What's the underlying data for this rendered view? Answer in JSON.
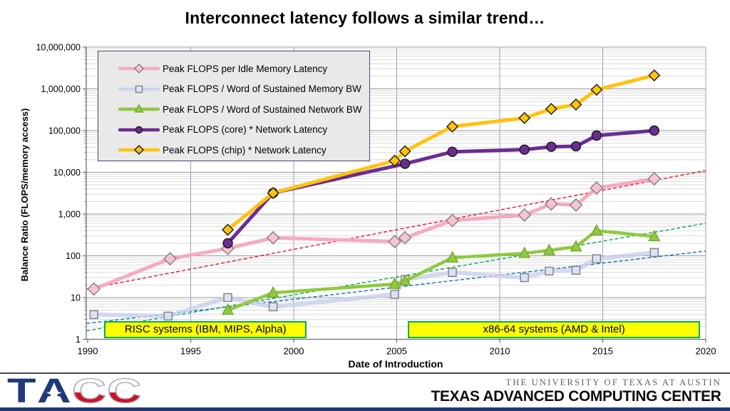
{
  "slide": {
    "title": "Interconnect latency follows a similar trend…"
  },
  "footer": {
    "logo_letters": [
      "T",
      "A",
      "C",
      "C"
    ],
    "star_icon": "★",
    "university": "THE UNIVERSITY OF TEXAS AT AUSTIN",
    "center": "TEXAS ADVANCED COMPUTING CENTER"
  },
  "chart_data": {
    "type": "line",
    "title": "Interconnect latency follows a similar trend…",
    "xlabel": "Date of Introduction",
    "ylabel": "Balance Ratio (FLOPS/memory access)",
    "x_axis": {
      "range": [
        1990,
        2020
      ],
      "ticks": [
        1990,
        1995,
        2000,
        2005,
        2010,
        2015,
        2020
      ],
      "grid": true
    },
    "y_axis": {
      "scale": "log",
      "range": [
        1,
        10000000
      ],
      "ticks": [
        1,
        10,
        100,
        1000,
        10000,
        100000,
        1000000,
        10000000
      ],
      "grid": true
    },
    "legend_position": "top-left",
    "series": [
      {
        "key": "flops-per-idle-memory-latency",
        "name": "Peak FLOPS per Idle Memory Latency",
        "marker": "diamond",
        "color": "#F5A7BD",
        "marker_fill": "#F7C3D2",
        "marker_stroke": "#7F7F7F",
        "line_width": 5,
        "opacity": 0.95,
        "marker_size": 7,
        "points": [
          [
            1990.3,
            16
          ],
          [
            1994.0,
            85
          ],
          [
            1996.8,
            150
          ],
          [
            1999.0,
            270
          ],
          [
            2004.9,
            220
          ],
          [
            2005.4,
            270
          ],
          [
            2007.7,
            700
          ],
          [
            2011.2,
            950
          ],
          [
            2012.5,
            1750
          ],
          [
            2013.7,
            1650
          ],
          [
            2014.7,
            4200
          ],
          [
            2017.5,
            7000
          ]
        ]
      },
      {
        "key": "flops-per-word-sustained-memory-bw",
        "name": "Peak FLOPS / Word of Sustained Memory BW",
        "marker": "square",
        "color": "#C9CFEC",
        "marker_fill": "#DCE1F5",
        "marker_stroke": "#7F7F7F",
        "line_width": 6,
        "opacity": 0.8,
        "marker_size": 5.5,
        "points": [
          [
            1990.3,
            3.9
          ],
          [
            1993.9,
            3.6
          ],
          [
            1996.8,
            10
          ],
          [
            1999.0,
            6
          ],
          [
            2004.9,
            12
          ],
          [
            2005.4,
            27
          ],
          [
            2007.7,
            40
          ],
          [
            2011.2,
            30
          ],
          [
            2012.4,
            43
          ],
          [
            2013.7,
            45
          ],
          [
            2014.7,
            85
          ],
          [
            2017.5,
            120
          ]
        ]
      },
      {
        "key": "flops-per-word-sustained-network-bw",
        "name": "Peak FLOPS / Word of Sustained Network BW",
        "marker": "triangle",
        "color": "#8FC93F",
        "marker_fill": "#8FC93F",
        "marker_stroke": "#74A72F",
        "line_width": 4.5,
        "opacity": 1,
        "marker_size": 6.5,
        "points": [
          [
            1996.8,
            5
          ],
          [
            1999.0,
            13
          ],
          [
            2004.9,
            21
          ],
          [
            2005.4,
            25
          ],
          [
            2007.7,
            90
          ],
          [
            2011.2,
            115
          ],
          [
            2012.4,
            135
          ],
          [
            2013.7,
            165
          ],
          [
            2014.7,
            400
          ],
          [
            2017.5,
            290
          ]
        ]
      },
      {
        "key": "flops-core-times-network-latency",
        "name": "Peak FLOPS (core) * Network Latency",
        "marker": "circle",
        "color": "#6A2D91",
        "marker_fill": "#6A2D91",
        "marker_stroke": "#1A1A1A",
        "line_width": 5,
        "opacity": 1,
        "marker_size": 6.5,
        "points": [
          [
            1996.8,
            200
          ],
          [
            1999.0,
            3200
          ],
          [
            2005.4,
            16000
          ],
          [
            2007.7,
            31000
          ],
          [
            2011.2,
            35000
          ],
          [
            2012.5,
            41000
          ],
          [
            2013.7,
            42000
          ],
          [
            2014.7,
            76000
          ],
          [
            2017.5,
            100000
          ]
        ]
      },
      {
        "key": "flops-chip-times-network-latency",
        "name": "Peak FLOPS (chip) * Network Latency",
        "marker": "diamond",
        "color": "#FFC20E",
        "marker_fill": "#FFC20E",
        "marker_stroke": "#1A1A1A",
        "line_width": 5,
        "opacity": 1,
        "marker_size": 6,
        "points": [
          [
            1996.8,
            420
          ],
          [
            1999.0,
            3200
          ],
          [
            2004.9,
            19000
          ],
          [
            2005.4,
            32000
          ],
          [
            2007.7,
            125000
          ],
          [
            2011.2,
            200000
          ],
          [
            2012.5,
            330000
          ],
          [
            2013.7,
            420000
          ],
          [
            2014.7,
            950000
          ],
          [
            2017.5,
            2100000
          ]
        ]
      }
    ],
    "trend_lines": [
      {
        "name": "memory-latency-trend",
        "color": "#E8112D",
        "points": [
          [
            1989.95,
            16
          ],
          [
            2020,
            11000
          ]
        ]
      },
      {
        "name": "memory-bw-trend",
        "color": "#0070C0",
        "points": [
          [
            1989.95,
            2.4
          ],
          [
            2020,
            130
          ]
        ]
      },
      {
        "name": "network-bw-trend",
        "color": "#00A651",
        "points": [
          [
            1989.95,
            1.6
          ],
          [
            2020,
            600
          ]
        ]
      }
    ],
    "annotations": [
      {
        "label": "RISC systems (IBM, MIPS, Alpha)",
        "x_range": [
          1990.8,
          2000.5
        ],
        "fill": "#FFFF00",
        "border": "#00B050"
      },
      {
        "label": "x86-64 systems (AMD & Intel)",
        "x_range": [
          2005.53,
          2019.6
        ],
        "fill": "#FFFF00",
        "border": "#00B050"
      }
    ],
    "colors": {
      "grid_minor": "#C6C6C6",
      "grid_major": "#9A9A9A",
      "grid_vertical": "#9C9CC2",
      "axis": "#6E6E6E",
      "legend_bg": "#E9E9E9",
      "legend_border": "#46466E"
    }
  }
}
